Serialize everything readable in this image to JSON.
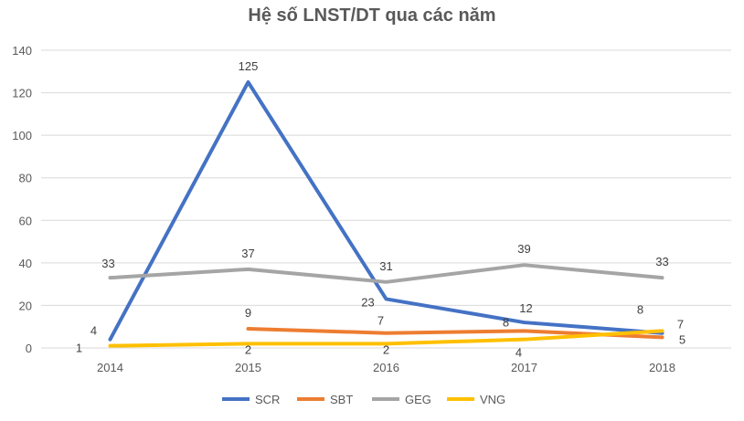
{
  "chart_data": {
    "type": "line",
    "title": "Hệ số LNST/DT qua các năm",
    "xlabel": "",
    "ylabel": "",
    "categories": [
      "2014",
      "2015",
      "2016",
      "2017",
      "2018"
    ],
    "ylim": [
      0,
      140
    ],
    "yticks": [
      "0",
      "20",
      "40",
      "60",
      "80",
      "100",
      "120",
      "140"
    ],
    "grid": true,
    "legend_position": "bottom",
    "series": [
      {
        "name": "SCR",
        "color": "#4472C4",
        "values": [
          4,
          125,
          23,
          12,
          7
        ],
        "labels": [
          "4",
          "125",
          "23",
          "12",
          "7"
        ]
      },
      {
        "name": "SBT",
        "color": "#ED7D31",
        "values": [
          null,
          9,
          7,
          8,
          5
        ],
        "labels": [
          "",
          "9",
          "7",
          "8",
          "5"
        ]
      },
      {
        "name": "GEG",
        "color": "#A5A5A5",
        "values": [
          33,
          37,
          31,
          39,
          33
        ],
        "labels": [
          "33",
          "37",
          "31",
          "39",
          "33"
        ]
      },
      {
        "name": "VNG",
        "color": "#FFC000",
        "values": [
          1,
          2,
          2,
          4,
          8
        ],
        "labels": [
          "1",
          "2",
          "2",
          "4",
          "8"
        ]
      }
    ]
  }
}
